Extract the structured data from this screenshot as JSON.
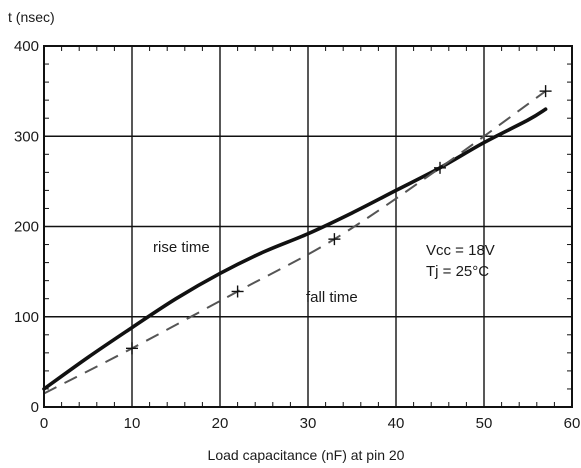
{
  "chart_data": {
    "type": "line",
    "ylabel": "t (nsec)",
    "xlabel": "Load capacitance (nF) at pin 20",
    "xlim": [
      0,
      60
    ],
    "ylim": [
      0,
      400
    ],
    "x_ticks": [
      0,
      10,
      20,
      30,
      40,
      50,
      60
    ],
    "y_ticks": [
      0,
      100,
      200,
      300,
      400
    ],
    "grid": true,
    "series": [
      {
        "name": "rise time",
        "style": "solid",
        "x": [
          0,
          5,
          10,
          15,
          20,
          25,
          30,
          35,
          40,
          45,
          50,
          55,
          57
        ],
        "y": [
          20,
          55,
          88,
          120,
          148,
          172,
          192,
          215,
          240,
          265,
          293,
          318,
          330
        ]
      },
      {
        "name": "fall time",
        "style": "dashed",
        "x": [
          0,
          10,
          22,
          33,
          45,
          57
        ],
        "y": [
          15,
          65,
          128,
          186,
          265,
          350
        ],
        "markers": [
          10,
          22,
          33,
          45,
          57
        ]
      }
    ],
    "annotations": [
      {
        "text": "rise time"
      },
      {
        "text": "fall time"
      },
      {
        "text": "Vcc = 18V"
      },
      {
        "text": "Tj = 25°C"
      }
    ]
  }
}
